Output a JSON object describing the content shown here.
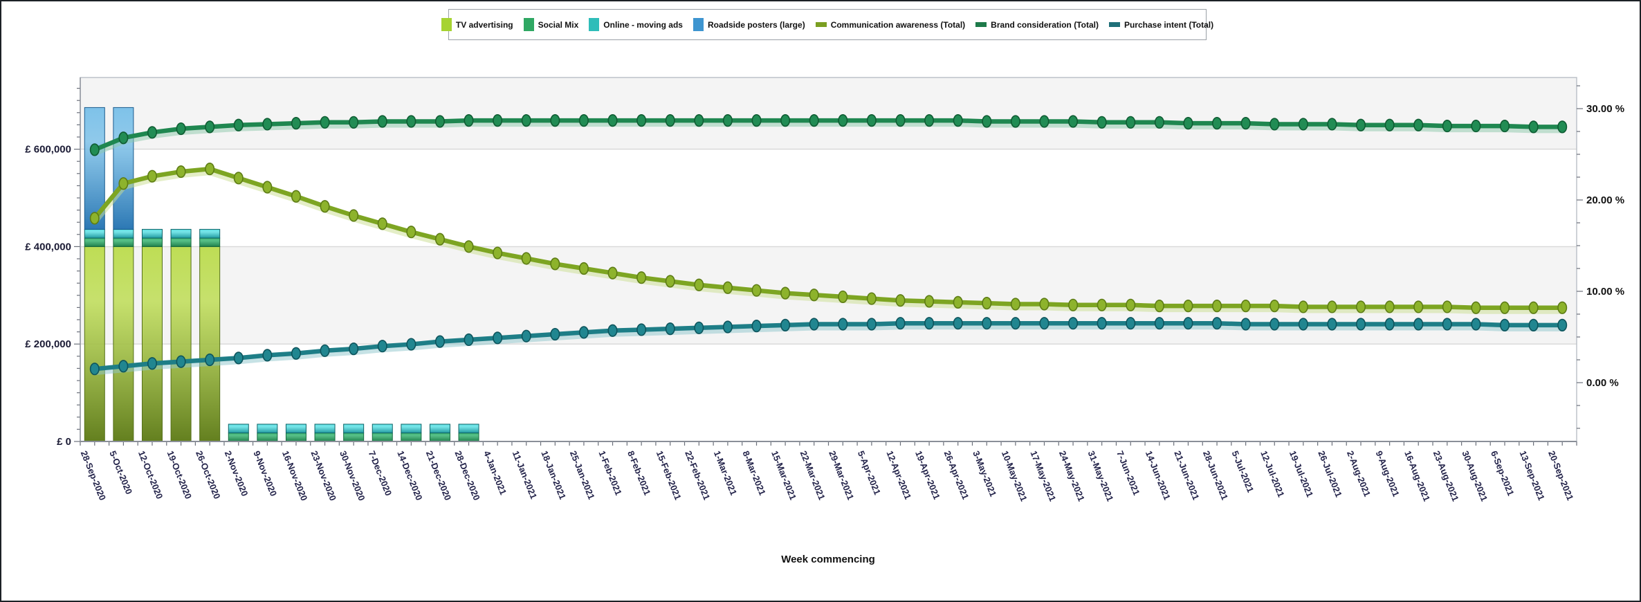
{
  "axes": {
    "x": {
      "title": "Week commencing",
      "label_color": "#23234a"
    },
    "y_left": {
      "tick_labels": [
        "£ 0",
        "£ 200,000",
        "£ 400,000",
        "£ 600,000"
      ],
      "tick_values": [
        0,
        200000,
        400000,
        600000
      ],
      "minor_step": 25000,
      "label_color": "#1b1b35"
    },
    "y_right": {
      "tick_labels": [
        "0.00 %",
        "10.00 %",
        "20.00 %",
        "30.00 %"
      ],
      "tick_values": [
        0,
        10,
        20,
        30
      ],
      "minor_step": 2.5,
      "label_color": "#111111"
    }
  },
  "legend": {
    "items": [
      {
        "label": "TV advertising",
        "color": "#a6d332",
        "shape": "box"
      },
      {
        "label": "Social Mix",
        "color": "#2fa863",
        "shape": "box"
      },
      {
        "label": "Online - moving ads",
        "color": "#2fbdb9",
        "shape": "box"
      },
      {
        "label": "Roadside posters (large)",
        "color": "#3e95d0",
        "shape": "box"
      },
      {
        "label": "Communication awareness (Total)",
        "color": "#7b9f22",
        "shape": "line"
      },
      {
        "label": "Brand consideration (Total)",
        "color": "#1e7a4a",
        "shape": "line"
      },
      {
        "label": "Purchase intent (Total)",
        "color": "#1f6f78",
        "shape": "line"
      }
    ]
  },
  "chart_data": {
    "type": "combo: stacked bar (left £ axis) + line (right % axis)",
    "categories": [
      "28-Sep-2020",
      "5-Oct-2020",
      "12-Oct-2020",
      "19-Oct-2020",
      "26-Oct-2020",
      "2-Nov-2020",
      "9-Nov-2020",
      "16-Nov-2020",
      "23-Nov-2020",
      "30-Nov-2020",
      "7-Dec-2020",
      "14-Dec-2020",
      "21-Dec-2020",
      "28-Dec-2020",
      "4-Jan-2021",
      "11-Jan-2021",
      "18-Jan-2021",
      "25-Jan-2021",
      "1-Feb-2021",
      "8-Feb-2021",
      "15-Feb-2021",
      "22-Feb-2021",
      "1-Mar-2021",
      "8-Mar-2021",
      "15-Mar-2021",
      "22-Mar-2021",
      "29-Mar-2021",
      "5-Apr-2021",
      "12-Apr-2021",
      "19-Apr-2021",
      "26-Apr-2021",
      "3-May-2021",
      "10-May-2021",
      "17-May-2021",
      "24-May-2021",
      "31-May-2021",
      "7-Jun-2021",
      "14-Jun-2021",
      "21-Jun-2021",
      "28-Jun-2021",
      "5-Jul-2021",
      "12-Jul-2021",
      "19-Jul-2021",
      "26-Jul-2021",
      "2-Aug-2021",
      "9-Aug-2021",
      "16-Aug-2021",
      "23-Aug-2021",
      "30-Aug-2021",
      "6-Sep-2021",
      "13-Sep-2021",
      "20-Sep-2021"
    ],
    "bar_series": [
      {
        "name": "TV advertising",
        "axis": "money",
        "color_top": "#bedd55",
        "color_bottom": "#637f1f",
        "stroke": "#55701a",
        "values": [
          400000,
          400000,
          400000,
          400000,
          400000,
          0,
          0,
          0,
          0,
          0,
          0,
          0,
          0,
          0,
          0,
          0,
          0,
          0,
          0,
          0,
          0,
          0,
          0,
          0,
          0,
          0,
          0,
          0,
          0,
          0,
          0,
          0,
          0,
          0,
          0,
          0,
          0,
          0,
          0,
          0,
          0,
          0,
          0,
          0,
          0,
          0,
          0,
          0,
          0,
          0,
          0,
          0
        ]
      },
      {
        "name": "Social Mix",
        "axis": "money",
        "color_top": "#3bb573",
        "color_bottom": "#1f7f4c",
        "stroke": "#176b3e",
        "values": [
          17500,
          17500,
          17500,
          17500,
          17500,
          17500,
          17500,
          17500,
          17500,
          17500,
          17500,
          17500,
          17500,
          17500,
          0,
          0,
          0,
          0,
          0,
          0,
          0,
          0,
          0,
          0,
          0,
          0,
          0,
          0,
          0,
          0,
          0,
          0,
          0,
          0,
          0,
          0,
          0,
          0,
          0,
          0,
          0,
          0,
          0,
          0,
          0,
          0,
          0,
          0,
          0,
          0,
          0,
          0
        ]
      },
      {
        "name": "Online - moving ads",
        "axis": "money",
        "color_top": "#5fe0e4",
        "color_bottom": "#1f989e",
        "stroke": "#0f6367",
        "values": [
          18000,
          18000,
          18000,
          18000,
          18000,
          18000,
          18000,
          18000,
          18000,
          18000,
          18000,
          18000,
          18000,
          18000,
          0,
          0,
          0,
          0,
          0,
          0,
          0,
          0,
          0,
          0,
          0,
          0,
          0,
          0,
          0,
          0,
          0,
          0,
          0,
          0,
          0,
          0,
          0,
          0,
          0,
          0,
          0,
          0,
          0,
          0,
          0,
          0,
          0,
          0,
          0,
          0,
          0,
          0
        ]
      },
      {
        "name": "Roadside posters (large)",
        "axis": "money",
        "color_top": "#7ec2e9",
        "color_bottom": "#2c78b4",
        "stroke": "#1b5c8e",
        "values": [
          250000,
          250000,
          0,
          0,
          0,
          0,
          0,
          0,
          0,
          0,
          0,
          0,
          0,
          0,
          0,
          0,
          0,
          0,
          0,
          0,
          0,
          0,
          0,
          0,
          0,
          0,
          0,
          0,
          0,
          0,
          0,
          0,
          0,
          0,
          0,
          0,
          0,
          0,
          0,
          0,
          0,
          0,
          0,
          0,
          0,
          0,
          0,
          0,
          0,
          0,
          0,
          0
        ]
      }
    ],
    "line_series": [
      {
        "name": "Communication awareness (Total)",
        "axis": "percent",
        "color": "#7da522",
        "marker_fill": "#8db32c",
        "marker_stroke": "#5d7c15",
        "shadow": "#c9dd8f",
        "values": [
          18.0,
          21.8,
          22.6,
          23.1,
          23.4,
          22.4,
          21.4,
          20.4,
          19.3,
          18.3,
          17.4,
          16.5,
          15.7,
          14.9,
          14.2,
          13.6,
          13.0,
          12.5,
          12.0,
          11.5,
          11.1,
          10.7,
          10.4,
          10.1,
          9.8,
          9.6,
          9.4,
          9.2,
          9.0,
          8.9,
          8.8,
          8.7,
          8.6,
          8.6,
          8.5,
          8.5,
          8.5,
          8.4,
          8.4,
          8.4,
          8.4,
          8.4,
          8.3,
          8.3,
          8.3,
          8.3,
          8.3,
          8.3,
          8.2,
          8.2,
          8.2,
          8.2
        ]
      },
      {
        "name": "Brand consideration (Total)",
        "axis": "percent",
        "color": "#1f8750",
        "marker_fill": "#218c54",
        "marker_stroke": "#0f5c33",
        "shadow": "#8cc7aa",
        "values": [
          25.5,
          26.8,
          27.4,
          27.8,
          28.0,
          28.2,
          28.3,
          28.4,
          28.5,
          28.5,
          28.6,
          28.6,
          28.6,
          28.7,
          28.7,
          28.7,
          28.7,
          28.7,
          28.7,
          28.7,
          28.7,
          28.7,
          28.7,
          28.7,
          28.7,
          28.7,
          28.7,
          28.7,
          28.7,
          28.7,
          28.7,
          28.6,
          28.6,
          28.6,
          28.6,
          28.5,
          28.5,
          28.5,
          28.4,
          28.4,
          28.4,
          28.3,
          28.3,
          28.3,
          28.2,
          28.2,
          28.2,
          28.1,
          28.1,
          28.1,
          28.0,
          28.0
        ]
      },
      {
        "name": "Purchase intent (Total)",
        "axis": "percent",
        "color": "#1e7e87",
        "marker_fill": "#218690",
        "marker_stroke": "#0e545c",
        "shadow": "#8ec6cb",
        "values": [
          1.5,
          1.8,
          2.1,
          2.3,
          2.5,
          2.7,
          3.0,
          3.2,
          3.5,
          3.7,
          4.0,
          4.2,
          4.5,
          4.7,
          4.9,
          5.1,
          5.3,
          5.5,
          5.7,
          5.8,
          5.9,
          6.0,
          6.1,
          6.2,
          6.3,
          6.4,
          6.4,
          6.4,
          6.5,
          6.5,
          6.5,
          6.5,
          6.5,
          6.5,
          6.5,
          6.5,
          6.5,
          6.5,
          6.5,
          6.5,
          6.4,
          6.4,
          6.4,
          6.4,
          6.4,
          6.4,
          6.4,
          6.4,
          6.4,
          6.3,
          6.3,
          6.3
        ]
      }
    ],
    "style": {
      "band_fill": "#f4f4f4",
      "gridline": "#d8d8d8",
      "plot_border": "#b9bec6",
      "axis_line": "#8a8f98",
      "tick_color": "#6a6f7a"
    },
    "left_axis_range": [
      0,
      747000
    ],
    "right_axis_range": [
      0,
      33.4
    ],
    "legend_position": "top-center",
    "grid": "horizontal major gridlines with alternating shaded bands"
  }
}
